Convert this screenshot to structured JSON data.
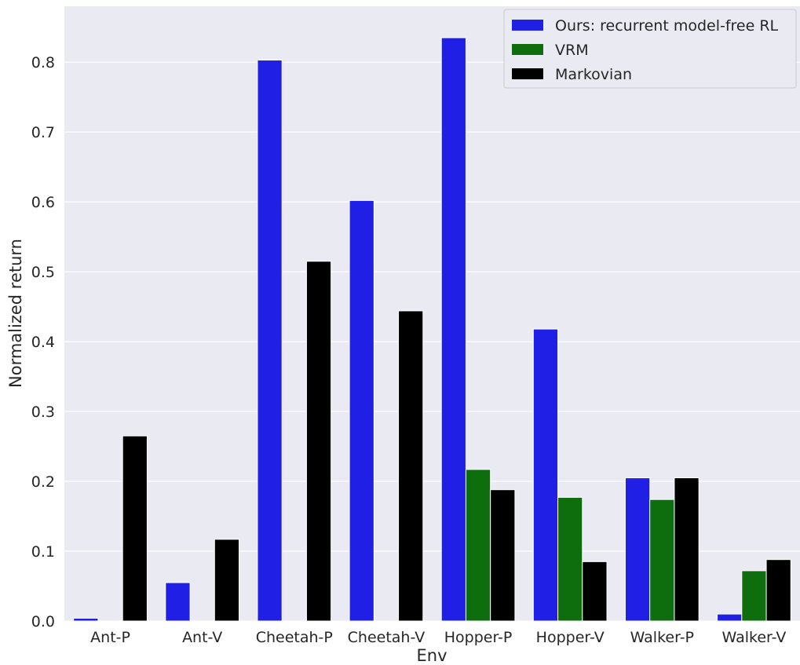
{
  "chart_data": {
    "type": "bar",
    "categories": [
      "Ant-P",
      "Ant-V",
      "Cheetah-P",
      "Cheetah-V",
      "Hopper-P",
      "Hopper-V",
      "Walker-P",
      "Walker-V"
    ],
    "series": [
      {
        "name": "Ours: recurrent model-free RL",
        "color": "#1f1fe6",
        "values": [
          0.004,
          0.055,
          0.803,
          0.602,
          0.835,
          0.418,
          0.205,
          0.01
        ]
      },
      {
        "name": "VRM",
        "color": "#0e6e0e",
        "values": [
          0.0,
          0.0,
          0.0,
          0.0,
          0.217,
          0.177,
          0.174,
          0.072
        ]
      },
      {
        "name": "Markovian",
        "color": "#000000",
        "values": [
          0.265,
          0.117,
          0.515,
          0.444,
          0.188,
          0.085,
          0.205,
          0.088
        ]
      }
    ],
    "xlabel": "Env",
    "ylabel": "Normalized return",
    "ylim": [
      0,
      0.88
    ],
    "yticks": [
      "0.0",
      "0.1",
      "0.2",
      "0.3",
      "0.4",
      "0.5",
      "0.6",
      "0.7",
      "0.8"
    ],
    "grid": true,
    "legend_position": "top-right",
    "background": "#eaeaf2"
  }
}
